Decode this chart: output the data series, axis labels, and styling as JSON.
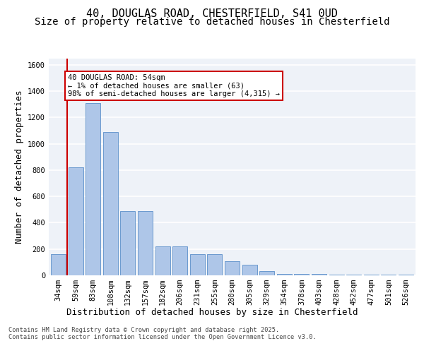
{
  "title_line1": "40, DOUGLAS ROAD, CHESTERFIELD, S41 0UD",
  "title_line2": "Size of property relative to detached houses in Chesterfield",
  "xlabel": "Distribution of detached houses by size in Chesterfield",
  "ylabel": "Number of detached properties",
  "categories": [
    "34sqm",
    "59sqm",
    "83sqm",
    "108sqm",
    "132sqm",
    "157sqm",
    "182sqm",
    "206sqm",
    "231sqm",
    "255sqm",
    "280sqm",
    "305sqm",
    "329sqm",
    "354sqm",
    "378sqm",
    "403sqm",
    "428sqm",
    "452sqm",
    "477sqm",
    "501sqm",
    "526sqm"
  ],
  "values": [
    160,
    820,
    1310,
    1090,
    490,
    490,
    220,
    220,
    160,
    160,
    105,
    80,
    30,
    10,
    10,
    10,
    5,
    5,
    5,
    5,
    5
  ],
  "bar_color": "#aec6e8",
  "bar_edge_color": "#5b8fc9",
  "annotation_text": "40 DOUGLAS ROAD: 54sqm\n← 1% of detached houses are smaller (63)\n98% of semi-detached houses are larger (4,315) →",
  "vline_color": "#cc0000",
  "box_edge_color": "#cc0000",
  "ylim": [
    0,
    1650
  ],
  "yticks": [
    0,
    200,
    400,
    600,
    800,
    1000,
    1200,
    1400,
    1600
  ],
  "background_color": "#eef2f8",
  "footer_line1": "Contains HM Land Registry data © Crown copyright and database right 2025.",
  "footer_line2": "Contains public sector information licensed under the Open Government Licence v3.0.",
  "grid_color": "#ffffff",
  "title_fontsize": 11,
  "subtitle_fontsize": 10,
  "tick_fontsize": 7.5,
  "label_fontsize": 9
}
